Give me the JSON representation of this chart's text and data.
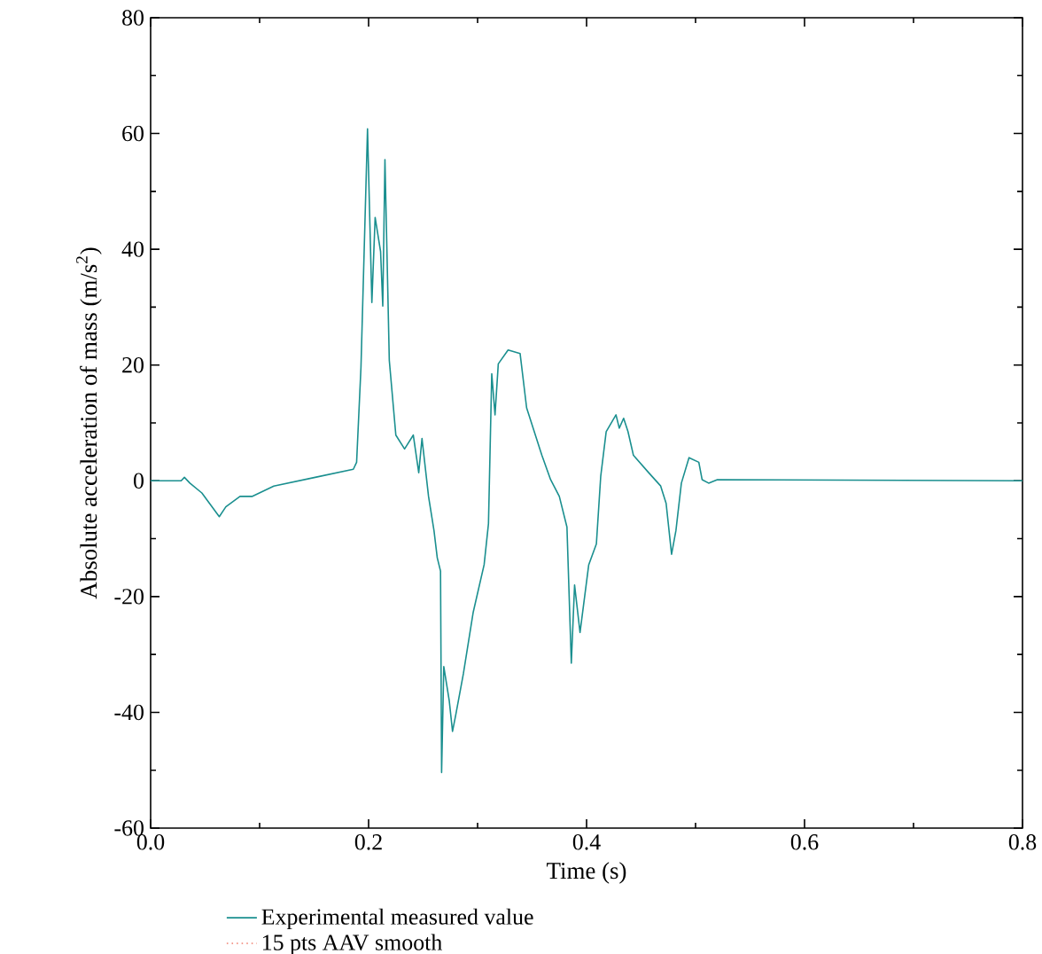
{
  "chart_data": {
    "type": "line",
    "xlabel": "Time (s)",
    "ylabel": "Absolute acceleration of mass (m/s$^{2}$)",
    "xlim": [
      0,
      0.8
    ],
    "ylim": [
      -60,
      80
    ],
    "xticks": [
      {
        "value": 0,
        "label": "0.0"
      },
      {
        "value": 0.1,
        "label": null
      },
      0.2,
      {
        "value": 0.3,
        "label": null
      },
      0.4,
      {
        "value": 0.5,
        "label": null
      },
      0.6,
      {
        "value": 0.7,
        "label": null
      },
      0.8
    ],
    "yticks": [
      -60,
      {
        "value": -50,
        "label": null
      },
      -40,
      {
        "value": -30,
        "label": null
      },
      -20,
      {
        "value": -10,
        "label": null
      },
      0,
      {
        "value": 10,
        "label": null
      },
      20,
      {
        "value": 30,
        "label": null
      },
      40,
      {
        "value": 50,
        "label": null
      },
      60,
      {
        "value": 70,
        "label": null
      },
      80
    ],
    "legend": "bottom",
    "marker": "none",
    "series": [
      {
        "name": "Experimental measured value",
        "color": "#1a8f8f",
        "line_style": "solid",
        "x": [
          0,
          0.028,
          0.031,
          0.036,
          0.047,
          0.063,
          0.069,
          0.082,
          0.093,
          0.113,
          0.151,
          0.186,
          0.189,
          0.193,
          0.199,
          0.203,
          0.206,
          0.211,
          0.213,
          0.215,
          0.219,
          0.225,
          0.233,
          0.241,
          0.246,
          0.249,
          0.255,
          0.26,
          0.263,
          0.266,
          0.267,
          0.269,
          0.274,
          0.277,
          0.28,
          0.287,
          0.296,
          0.306,
          0.31,
          0.313,
          0.316,
          0.319,
          0.328,
          0.339,
          0.345,
          0.359,
          0.367,
          0.375,
          0.382,
          0.386,
          0.389,
          0.394,
          0.402,
          0.409,
          0.413,
          0.418,
          0.427,
          0.43,
          0.434,
          0.438,
          0.443,
          0.457,
          0.468,
          0.473,
          0.478,
          0.482,
          0.487,
          0.494,
          0.503,
          0.506,
          0.512,
          0.52,
          0.8
        ],
        "values": [
          0,
          0,
          0.6,
          -0.4,
          -2.1,
          -6.2,
          -4.5,
          -2.7,
          -2.7,
          -0.9,
          0.6,
          2,
          3.2,
          19.6,
          60.8,
          30.8,
          45.5,
          39.6,
          30.2,
          55.5,
          20.8,
          7.9,
          5.5,
          7.9,
          1.4,
          7.3,
          -2.7,
          -8.6,
          -13.3,
          -15.6,
          -50.4,
          -32.1,
          -38,
          -43.3,
          -40.4,
          -33.3,
          -22.7,
          -14.5,
          -7.4,
          18.5,
          11.4,
          20.2,
          22.6,
          22,
          12.6,
          4.4,
          0.2,
          -2.7,
          -8,
          -31.5,
          -18,
          -26.2,
          -14.5,
          -10.9,
          0.8,
          8.5,
          11.4,
          9.1,
          10.8,
          8.5,
          4.4,
          1.4,
          -0.9,
          -3.9,
          -12.7,
          -8.6,
          -0.4,
          4,
          3.2,
          0.2,
          -0.4,
          0.2,
          0
        ]
      },
      {
        "name": "15 pts AAV smooth",
        "color": "#f08070",
        "line_style": "dotted",
        "values": [
          null
        ]
      }
    ]
  }
}
